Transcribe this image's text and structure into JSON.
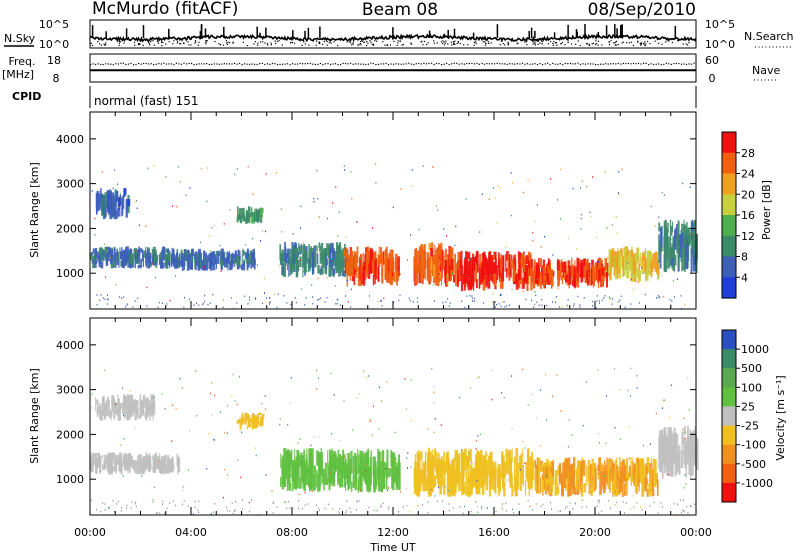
{
  "header": {
    "radar": "McMurdo (fitACF)",
    "beam": "Beam 08",
    "date": "08/Sep/2010"
  },
  "noise_panel": {
    "left_label": "N.Sky",
    "right_label": "N.Search",
    "left_ticks": [
      "10^5",
      "10^0"
    ],
    "right_ticks": [
      "10^5",
      "10^0"
    ]
  },
  "freq_panel": {
    "label_line1": "Freq.",
    "label_line2": "[MHz]",
    "left_ticks": [
      "18",
      "8"
    ],
    "right_ticks": [
      "60",
      "0"
    ],
    "right_label": "Nave",
    "freq_value_mhz": 12.2,
    "nave_value": 40
  },
  "cpid_panel": {
    "label": "CPID",
    "value": "normal (fast) 151"
  },
  "chart_data": [
    {
      "type": "heatmap",
      "parameter": "Power",
      "ylabel": "Slant Range [km]",
      "ylim": [
        200,
        4600
      ],
      "yticks": [
        "1000",
        "2000",
        "3000",
        "4000"
      ],
      "xlim": [
        0,
        24
      ],
      "colorbar": {
        "label": "Power [dB]",
        "ticks": [
          "4",
          "8",
          "12",
          "16",
          "20",
          "24",
          "28"
        ],
        "range": [
          0,
          32
        ],
        "colors": [
          "#1f3fd8",
          "#3d5fb8",
          "#3b8a6a",
          "#4fb04f",
          "#c8d040",
          "#f0a020",
          "#f06010",
          "#f01010"
        ]
      },
      "echo_regions": [
        {
          "t": [
            0.2,
            1.5
          ],
          "range_km": [
            2200,
            2900
          ],
          "value": 6
        },
        {
          "t": [
            0.0,
            3.5
          ],
          "range_km": [
            1100,
            1600
          ],
          "value": 7
        },
        {
          "t": [
            3.5,
            6.5
          ],
          "range_km": [
            1050,
            1550
          ],
          "value": 7
        },
        {
          "t": [
            5.8,
            6.8
          ],
          "range_km": [
            2100,
            2500
          ],
          "value": 11
        },
        {
          "t": [
            7.5,
            10.2
          ],
          "range_km": [
            900,
            1700
          ],
          "value": 9
        },
        {
          "t": [
            10.0,
            12.2
          ],
          "range_km": [
            700,
            1600
          ],
          "value": 27
        },
        {
          "t": [
            12.8,
            14.5
          ],
          "range_km": [
            700,
            1700
          ],
          "value": 26
        },
        {
          "t": [
            14.5,
            17.5
          ],
          "range_km": [
            600,
            1500
          ],
          "value": 29
        },
        {
          "t": [
            17.5,
            20.5
          ],
          "range_km": [
            650,
            1350
          ],
          "value": 28
        },
        {
          "t": [
            20.5,
            22.5
          ],
          "range_km": [
            800,
            1600
          ],
          "value": 20
        },
        {
          "t": [
            22.5,
            24.0
          ],
          "range_km": [
            1000,
            2200
          ],
          "value": 9
        }
      ]
    },
    {
      "type": "heatmap",
      "parameter": "Velocity",
      "ylabel": "Slant Range [km]",
      "ylim": [
        200,
        4600
      ],
      "yticks": [
        "1000",
        "2000",
        "3000",
        "4000"
      ],
      "xlim": [
        0,
        24
      ],
      "xticks": [
        "00:00",
        "04:00",
        "08:00",
        "12:00",
        "16:00",
        "20:00",
        "00:00"
      ],
      "xlabel": "Time UT",
      "colorbar": {
        "label": "Velocity [m s⁻¹]",
        "ticks": [
          "1000",
          "500",
          "100",
          "25",
          "-25",
          "-100",
          "-500",
          "-1000"
        ],
        "range": [
          -1200,
          1200
        ],
        "colors": [
          "#2a4fc0",
          "#3b8a6a",
          "#5aa850",
          "#60c040",
          "#c0c0c0",
          "#f0c020",
          "#f09020",
          "#f06010",
          "#f01010"
        ]
      },
      "echo_regions": [
        {
          "t": [
            0.2,
            2.5
          ],
          "range_km": [
            2300,
            2900
          ],
          "value": 0
        },
        {
          "t": [
            0.0,
            3.5
          ],
          "range_km": [
            1100,
            1600
          ],
          "value": 50
        },
        {
          "t": [
            5.8,
            6.8
          ],
          "range_km": [
            2100,
            2500
          ],
          "value": -200
        },
        {
          "t": [
            7.5,
            12.2
          ],
          "range_km": [
            700,
            1700
          ],
          "value": 300
        },
        {
          "t": [
            12.8,
            17.5
          ],
          "range_km": [
            600,
            1700
          ],
          "value": -300
        },
        {
          "t": [
            17.5,
            22.5
          ],
          "range_km": [
            600,
            1500
          ],
          "value": -400
        },
        {
          "t": [
            22.5,
            24.0
          ],
          "range_km": [
            1000,
            2200
          ],
          "value": 0
        }
      ]
    }
  ]
}
